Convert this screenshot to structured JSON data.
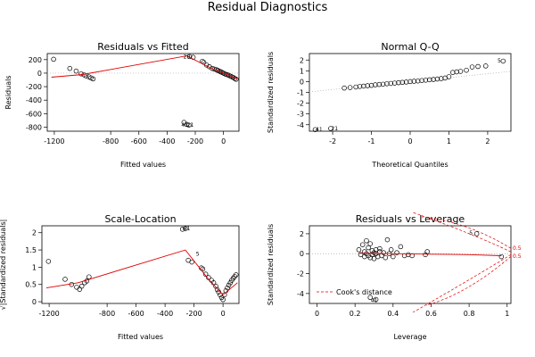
{
  "figure": {
    "title": "Residual Diagnostics"
  },
  "chart_data": [
    {
      "type": "scatter",
      "title": "Residuals vs Fitted",
      "xlabel": "Fitted values",
      "ylabel": "Residuals",
      "xlim": [
        -1250,
        110
      ],
      "ylim": [
        -860,
        290
      ],
      "xticks": [
        -1200,
        -800,
        -600,
        -400,
        -200,
        0
      ],
      "yticks": [
        -800,
        -600,
        -400,
        -200,
        0,
        200
      ],
      "points": [
        [
          -1205,
          205
        ],
        [
          -1090,
          70
        ],
        [
          -1045,
          30
        ],
        [
          -1010,
          -10
        ],
        [
          -990,
          -25
        ],
        [
          -975,
          -40
        ],
        [
          -955,
          -55
        ],
        [
          -940,
          -70
        ],
        [
          -925,
          -85
        ],
        [
          -240,
          245
        ],
        [
          -215,
          235
        ],
        [
          -150,
          175
        ],
        [
          -140,
          160
        ],
        [
          -120,
          120
        ],
        [
          -100,
          95
        ],
        [
          -80,
          70
        ],
        [
          -65,
          60
        ],
        [
          -50,
          50
        ],
        [
          -40,
          40
        ],
        [
          -30,
          30
        ],
        [
          -20,
          20
        ],
        [
          -10,
          10
        ],
        [
          0,
          0
        ],
        [
          10,
          -10
        ],
        [
          20,
          -20
        ],
        [
          30,
          -25
        ],
        [
          40,
          -35
        ],
        [
          50,
          -45
        ],
        [
          60,
          -55
        ],
        [
          70,
          -65
        ],
        [
          80,
          -80
        ],
        [
          90,
          -90
        ],
        [
          -280,
          -730
        ],
        [
          -260,
          -760
        ],
        [
          -245,
          -770
        ]
      ],
      "smooth": [
        [
          -1220,
          -60
        ],
        [
          -1000,
          -20
        ],
        [
          -260,
          255
        ],
        [
          -100,
          85
        ],
        [
          0,
          0
        ],
        [
          100,
          -85
        ]
      ],
      "labels": [
        {
          "x": -260,
          "y": 245,
          "text": "29"
        },
        {
          "x": -275,
          "y": -770,
          "text": "41"
        },
        {
          "x": -235,
          "y": -770,
          "text": "21"
        }
      ]
    },
    {
      "type": "scatter",
      "title": "Normal Q-Q",
      "xlabel": "Theoretical Quantiles",
      "ylabel": "Standardized residuals",
      "xlim": [
        -2.6,
        2.6
      ],
      "ylim": [
        -4.6,
        2.6
      ],
      "xticks": [
        -2,
        -1,
        0,
        1,
        2
      ],
      "yticks": [
        -4,
        -3,
        -2,
        -1,
        0,
        1,
        2
      ],
      "points": [
        [
          -2.45,
          -4.45
        ],
        [
          -2.05,
          -4.35
        ],
        [
          -1.7,
          -0.6
        ],
        [
          -1.55,
          -0.55
        ],
        [
          -1.4,
          -0.5
        ],
        [
          -1.3,
          -0.45
        ],
        [
          -1.2,
          -0.42
        ],
        [
          -1.1,
          -0.38
        ],
        [
          -1.0,
          -0.35
        ],
        [
          -0.9,
          -0.3
        ],
        [
          -0.8,
          -0.27
        ],
        [
          -0.7,
          -0.24
        ],
        [
          -0.6,
          -0.2
        ],
        [
          -0.5,
          -0.17
        ],
        [
          -0.4,
          -0.14
        ],
        [
          -0.3,
          -0.1
        ],
        [
          -0.2,
          -0.07
        ],
        [
          -0.1,
          -0.04
        ],
        [
          0.0,
          0.0
        ],
        [
          0.1,
          0.03
        ],
        [
          0.2,
          0.06
        ],
        [
          0.3,
          0.1
        ],
        [
          0.4,
          0.13
        ],
        [
          0.5,
          0.17
        ],
        [
          0.6,
          0.2
        ],
        [
          0.7,
          0.24
        ],
        [
          0.8,
          0.28
        ],
        [
          0.9,
          0.33
        ],
        [
          1.0,
          0.45
        ],
        [
          1.1,
          0.85
        ],
        [
          1.2,
          0.9
        ],
        [
          1.3,
          0.95
        ],
        [
          1.45,
          1.05
        ],
        [
          1.6,
          1.35
        ],
        [
          1.75,
          1.4
        ],
        [
          1.95,
          1.45
        ],
        [
          2.4,
          1.9
        ]
      ],
      "refline": [
        [
          -2.6,
          -0.95
        ],
        [
          2.6,
          0.95
        ]
      ],
      "labels": [
        {
          "x": -2.35,
          "y": -4.45,
          "text": "41"
        },
        {
          "x": -1.95,
          "y": -4.35,
          "text": "21"
        },
        {
          "x": 2.3,
          "y": 1.95,
          "text": "5"
        }
      ]
    },
    {
      "type": "scatter",
      "title": "Scale-Location",
      "xlabel": "Fitted values",
      "ylabel": "√|Standardized residuals|",
      "xlim": [
        -1250,
        110
      ],
      "ylim": [
        -0.05,
        2.2
      ],
      "xticks": [
        -1200,
        -800,
        -600,
        -400,
        -200,
        0
      ],
      "yticks": [
        0.0,
        0.5,
        1.0,
        1.5,
        2.0
      ],
      "points": [
        [
          -1205,
          1.17
        ],
        [
          -1090,
          0.65
        ],
        [
          -1045,
          0.5
        ],
        [
          -1010,
          0.42
        ],
        [
          -990,
          0.36
        ],
        [
          -975,
          0.45
        ],
        [
          -955,
          0.55
        ],
        [
          -940,
          0.6
        ],
        [
          -925,
          0.72
        ],
        [
          -280,
          2.1
        ],
        [
          -260,
          2.12
        ],
        [
          -240,
          1.2
        ],
        [
          -215,
          1.15
        ],
        [
          -150,
          0.98
        ],
        [
          -140,
          0.95
        ],
        [
          -120,
          0.8
        ],
        [
          -100,
          0.7
        ],
        [
          -80,
          0.62
        ],
        [
          -65,
          0.55
        ],
        [
          -50,
          0.45
        ],
        [
          -40,
          0.35
        ],
        [
          -30,
          0.28
        ],
        [
          -20,
          0.2
        ],
        [
          -10,
          0.12
        ],
        [
          0,
          0.06
        ],
        [
          10,
          0.2
        ],
        [
          20,
          0.32
        ],
        [
          30,
          0.4
        ],
        [
          40,
          0.48
        ],
        [
          50,
          0.55
        ],
        [
          60,
          0.62
        ],
        [
          70,
          0.68
        ],
        [
          80,
          0.73
        ],
        [
          90,
          0.78
        ]
      ],
      "smooth": [
        [
          -1220,
          0.4
        ],
        [
          -1000,
          0.55
        ],
        [
          -260,
          1.5
        ],
        [
          -100,
          0.65
        ],
        [
          0,
          0.2
        ],
        [
          100,
          0.55
        ]
      ],
      "labels": [
        {
          "x": -250,
          "y": 2.12,
          "text": "41"
        },
        {
          "x": -175,
          "y": 1.38,
          "text": "5"
        }
      ]
    },
    {
      "type": "scatter",
      "title": "Residuals vs Leverage",
      "xlabel": "Leverage",
      "ylabel": "Standardized residuals",
      "xlim": [
        -0.04,
        1.02
      ],
      "ylim": [
        -5.0,
        2.8
      ],
      "xticks": [
        0.0,
        0.2,
        0.4,
        0.6,
        0.8,
        1.0
      ],
      "yticks": [
        -4,
        -2,
        0,
        2
      ],
      "points": [
        [
          0.22,
          0.4
        ],
        [
          0.23,
          -0.1
        ],
        [
          0.24,
          0.9
        ],
        [
          0.25,
          -0.3
        ],
        [
          0.25,
          0.2
        ],
        [
          0.26,
          1.3
        ],
        [
          0.26,
          0.0
        ],
        [
          0.27,
          -0.2
        ],
        [
          0.27,
          0.6
        ],
        [
          0.28,
          1.0
        ],
        [
          0.28,
          -0.4
        ],
        [
          0.29,
          0.3
        ],
        [
          0.29,
          -0.1
        ],
        [
          0.3,
          0.1
        ],
        [
          0.3,
          -0.5
        ],
        [
          0.31,
          0.4
        ],
        [
          0.31,
          0.0
        ],
        [
          0.32,
          -0.3
        ],
        [
          0.33,
          0.2
        ],
        [
          0.33,
          0.5
        ],
        [
          0.34,
          -0.2
        ],
        [
          0.35,
          0.1
        ],
        [
          0.36,
          -0.4
        ],
        [
          0.37,
          1.4
        ],
        [
          0.38,
          0.0
        ],
        [
          0.39,
          0.4
        ],
        [
          0.4,
          -0.3
        ],
        [
          0.42,
          0.1
        ],
        [
          0.44,
          0.7
        ],
        [
          0.46,
          -0.2
        ],
        [
          0.48,
          -0.1
        ],
        [
          0.5,
          -0.2
        ],
        [
          0.57,
          -0.1
        ],
        [
          0.58,
          0.2
        ],
        [
          0.84,
          2.0
        ],
        [
          0.97,
          -0.3
        ],
        [
          0.28,
          -4.4
        ],
        [
          0.31,
          -4.6
        ]
      ],
      "smooth": [
        [
          0.22,
          0.05
        ],
        [
          0.4,
          0.0
        ],
        [
          0.6,
          -0.05
        ],
        [
          0.8,
          -0.1
        ],
        [
          0.97,
          -0.2
        ]
      ],
      "labels": [
        {
          "x": 0.81,
          "y": 2.1,
          "text": "5"
        },
        {
          "x": 0.3,
          "y": -4.7,
          "text": "41"
        }
      ],
      "legend": {
        "text": "Cook's distance",
        "placement": "bottom-left"
      },
      "contour_labels": [
        "0.5",
        "0.5"
      ]
    }
  ]
}
